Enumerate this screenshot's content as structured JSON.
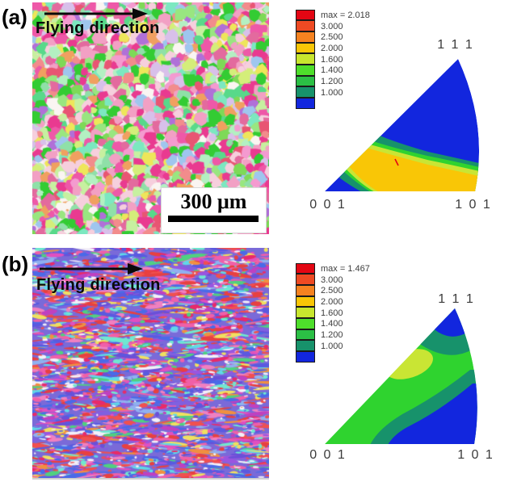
{
  "panel_a": {
    "label": "(a)",
    "direction_label": "Flying direction",
    "scalebar_text": "300 μm",
    "ipf_max_label": "max = 2.018",
    "corner_top": "1 1 1",
    "corner_bottom_left": "0 0 1",
    "corner_bottom_right": "1 0 1"
  },
  "panel_b": {
    "label": "(b)",
    "direction_label": "Flying direction",
    "ipf_max_label": "max = 1.467",
    "corner_top": "1 1 1",
    "corner_bottom_left": "0 0 1",
    "corner_bottom_right": "1 0 1"
  },
  "legend": {
    "levels": [
      "3.000",
      "2.500",
      "2.000",
      "1.600",
      "1.400",
      "1.200",
      "1.000"
    ],
    "box_colors": [
      "#e30613",
      "#ee4a23",
      "#f58220",
      "#f9c606",
      "#c8e62e",
      "#4ede2b",
      "#2bbf45",
      "#17926b",
      "#1226de"
    ]
  },
  "ipf_region_colors": {
    "blue": "#1226de",
    "teal": "#17926b",
    "green": "#2fd32f",
    "chartreuse": "#c9e534",
    "yellow": "#f9c606",
    "max_marker_red": "#e30613"
  },
  "map_palette_a": [
    "#f2a0c4",
    "#ee58a8",
    "#e93a90",
    "#f6cfdd",
    "#f28c8c",
    "#e85573",
    "#f2a0c4",
    "#ee58a8",
    "#33cc33",
    "#7ed957",
    "#99e680",
    "#b3f0c2",
    "#58d98a",
    "#d4ee7a",
    "#eee65a",
    "#7ce8c0",
    "#d8c0ea",
    "#b070d8",
    "#9fc6ee",
    "#f0a060",
    "#faf5f2",
    "#e93a90",
    "#33cc33",
    "#f6cfdd",
    "#c7f0a0",
    "#f49ad0",
    "#e36a9e",
    "#8fe0a8"
  ],
  "map_palette_b": [
    "#5a5ae0",
    "#4a6ae8",
    "#6a50d8",
    "#9a55e0",
    "#e050c0",
    "#f060a8",
    "#f080c0",
    "#e84040",
    "#f05050",
    "#f09040",
    "#e82a6a",
    "#60d8e8",
    "#70e8d0",
    "#90b0f0",
    "#f0e060",
    "#f4f0f8",
    "#50d080",
    "#c040c0",
    "#5a5ae0",
    "#e84040",
    "#f060a8",
    "#4a6ae8",
    "#8060e0",
    "#f05050"
  ]
}
